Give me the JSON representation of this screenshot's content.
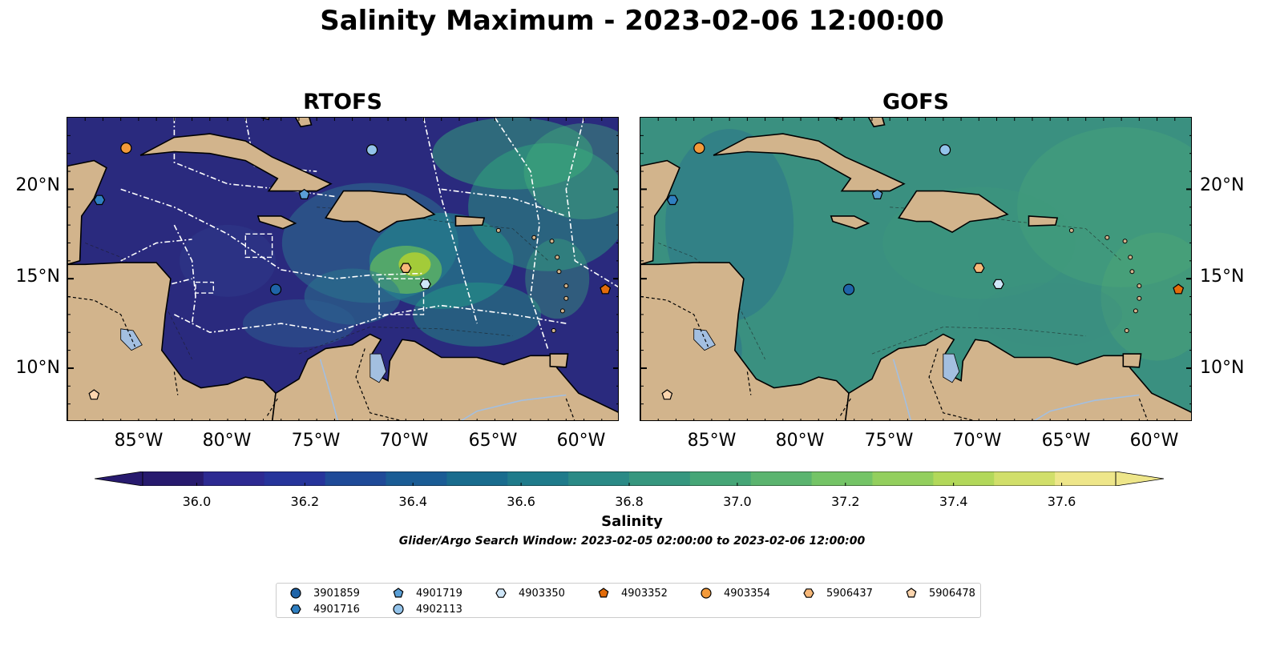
{
  "title": "Salinity Maximum - 2023-02-06 12:00:00",
  "panels": [
    {
      "title": "RTOFS"
    },
    {
      "title": "GOFS"
    }
  ],
  "latitude_labels": [
    "20°N",
    "15°N",
    "10°N"
  ],
  "longitude_labels": [
    "85°W",
    "80°W",
    "75°W",
    "70°W",
    "65°W",
    "60°W"
  ],
  "map_extent": {
    "lon_min": -89,
    "lon_max": -58,
    "lat_min": 7,
    "lat_max": 24
  },
  "colorbar": {
    "label": "Salinity",
    "ticks": [
      "36.0",
      "36.2",
      "36.4",
      "36.6",
      "36.8",
      "37.0",
      "37.2",
      "37.4",
      "37.6"
    ],
    "range": [
      35.9,
      37.7
    ],
    "colormap": "viridis-like (dark indigo to pale yellow)",
    "extend": "both"
  },
  "search_window": "Glider/Argo Search Window: 2023-02-05 02:00:00 to 2023-02-06 12:00:00",
  "colors": {
    "land": "#d2b48c",
    "lakes": "#a3bfe0",
    "rtofs_ocean": "#2a2a7e",
    "gofs_ocean": "#3a9080"
  },
  "floats": [
    {
      "id": "3901859",
      "marker": "circle",
      "color": "#1f64a8",
      "lon": -77.3,
      "lat": 14.4
    },
    {
      "id": "4901716",
      "marker": "hexagon",
      "color": "#2f7fc1",
      "lon": -87.2,
      "lat": 19.4
    },
    {
      "id": "4901719",
      "marker": "pentagon",
      "color": "#5a9fd6",
      "lon": -75.7,
      "lat": 19.7
    },
    {
      "id": "4902113",
      "marker": "circle",
      "color": "#93c3ea",
      "lon": -71.9,
      "lat": 22.2
    },
    {
      "id": "4903350",
      "marker": "hexagon",
      "color": "#cfe6f8",
      "lon": -68.9,
      "lat": 14.7
    },
    {
      "id": "4903352",
      "marker": "pentagon",
      "color": "#e36c0a",
      "lon": -58.8,
      "lat": 14.4
    },
    {
      "id": "4903354",
      "marker": "circle",
      "color": "#f39a3a",
      "lon": -85.7,
      "lat": 22.3
    },
    {
      "id": "5906437",
      "marker": "hexagon",
      "color": "#f7b879",
      "lon": -70.0,
      "lat": 15.6
    },
    {
      "id": "5906478",
      "marker": "pentagon",
      "color": "#fcd5ae",
      "lon": -87.5,
      "lat": 8.5
    }
  ]
}
